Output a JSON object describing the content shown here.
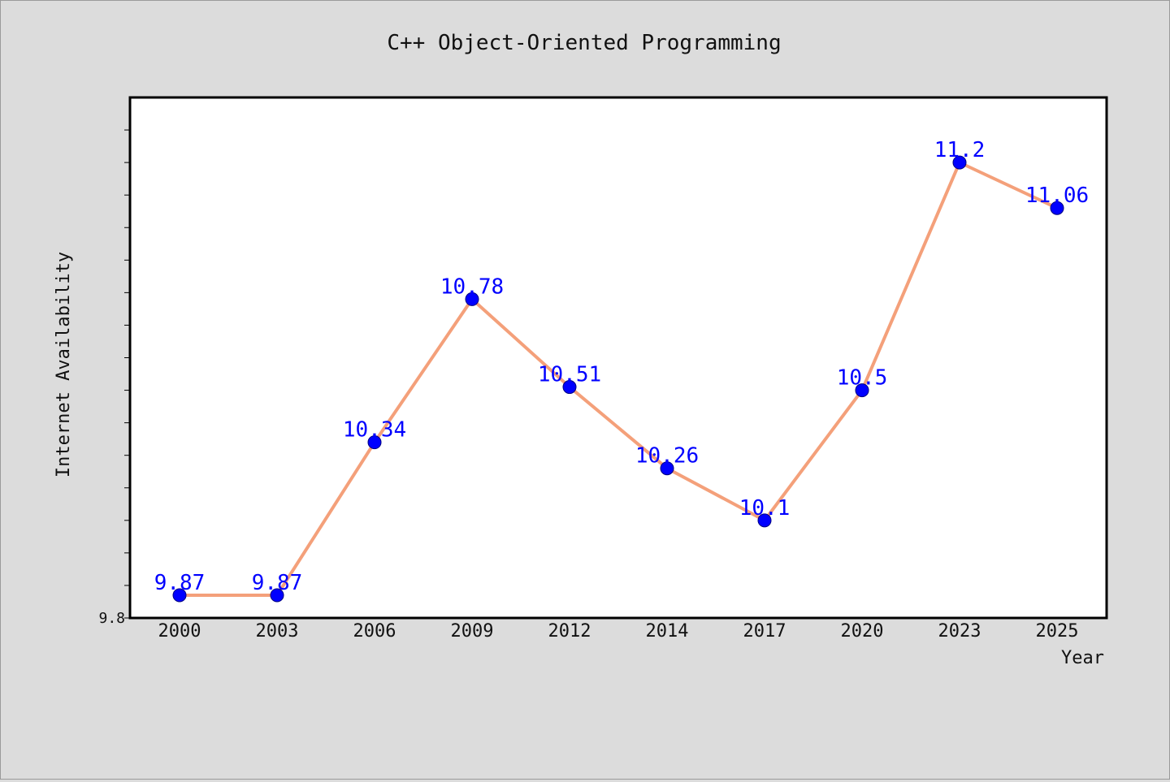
{
  "chart_data": {
    "type": "line",
    "title": "C++ Object-Oriented Programming",
    "xlabel": "Year",
    "ylabel": "Internet Availability",
    "categories": [
      "2000",
      "2003",
      "2006",
      "2009",
      "2012",
      "2014",
      "2017",
      "2020",
      "2023",
      "2025"
    ],
    "series": [
      {
        "values": [
          9.87,
          9.87,
          10.34,
          10.78,
          10.51,
          10.26,
          10.1,
          10.5,
          11.2,
          11.06
        ]
      }
    ],
    "data_labels": [
      "9.87",
      "9.87",
      "10.34",
      "10.78",
      "10.51",
      "10.26",
      "10.1",
      "10.5",
      "11.2",
      "11.06"
    ],
    "ylim": [
      9.8,
      11.4
    ],
    "ytick_labels": [
      "9.8"
    ],
    "grid": false,
    "colors": {
      "line": "#f4a07a",
      "marker": "#0000ff",
      "data_label": "#0000ff",
      "background": "#dcdcdc",
      "plot_background": "#ffffff"
    }
  }
}
